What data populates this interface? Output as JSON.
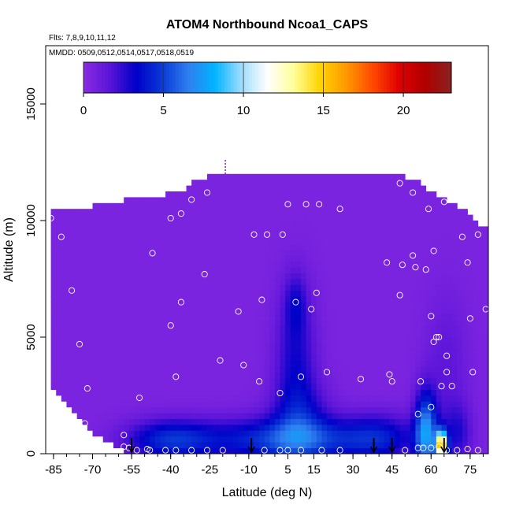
{
  "chart_data": {
    "type": "heatmap",
    "title": "ATOM4 Northbound Ncoa1_CAPS",
    "subtitle_flights": "Flts: 7,8,9,10,11,12",
    "subtitle_dates": "MMDD: 0509,0512,0514,0517,0518,0519",
    "xlabel": "Latitude (deg N)",
    "ylabel": "Altitude (m)",
    "xlim": [
      -88,
      82
    ],
    "ylim": [
      0,
      17500
    ],
    "x_ticks": [
      -85,
      -70,
      -55,
      -40,
      -25,
      -10,
      5,
      15,
      30,
      45,
      60,
      75
    ],
    "x_tick_labels": [
      "-85",
      "-70",
      "-55",
      "-40",
      "-25",
      "-10",
      "5",
      "15",
      "30",
      "45",
      "60",
      "75"
    ],
    "y_ticks": [
      0,
      5000,
      10000,
      15000
    ],
    "y_tick_labels": [
      "0",
      "5000",
      "10000",
      "15000"
    ],
    "colorbar": {
      "min": 0,
      "max": 23,
      "ticks": [
        0,
        5,
        10,
        15,
        20
      ],
      "tick_labels": [
        "0",
        "5",
        "10",
        "15",
        "20"
      ],
      "colors": [
        "#8a2be2",
        "#5a14d8",
        "#0000c8",
        "#0a3ad6",
        "#2f7ff0",
        "#00b4ff",
        "#9fdcff",
        "#ffffff",
        "#ffff9a",
        "#ffd400",
        "#ff9800",
        "#ff4a00",
        "#e00000",
        "#b00000",
        "#8b2222"
      ]
    },
    "background_value": 0.5,
    "profile_top": [
      [
        -86,
        10500
      ],
      [
        -82,
        10500
      ],
      [
        -78,
        10500
      ],
      [
        -74,
        10500
      ],
      [
        -70,
        10500
      ],
      [
        -66,
        10600
      ],
      [
        -62,
        10600
      ],
      [
        -58,
        10800
      ],
      [
        -54,
        10800
      ],
      [
        -50,
        10900
      ],
      [
        -46,
        10900
      ],
      [
        -42,
        11000
      ],
      [
        -38,
        11100
      ],
      [
        -34,
        11300
      ],
      [
        -30,
        11600
      ],
      [
        -26,
        11800
      ],
      [
        -22,
        11900
      ],
      [
        -18,
        11900
      ],
      [
        -14,
        11900
      ],
      [
        -10,
        11900
      ],
      [
        -6,
        11900
      ],
      [
        -2,
        11900
      ],
      [
        2,
        11900
      ],
      [
        6,
        11900
      ],
      [
        10,
        11900
      ],
      [
        14,
        11900
      ],
      [
        18,
        11900
      ],
      [
        22,
        11900
      ],
      [
        26,
        11900
      ],
      [
        30,
        11900
      ],
      [
        34,
        11900
      ],
      [
        38,
        11900
      ],
      [
        42,
        11900
      ],
      [
        46,
        11900
      ],
      [
        50,
        11800
      ],
      [
        54,
        11600
      ],
      [
        58,
        11300
      ],
      [
        62,
        11000
      ],
      [
        66,
        10800
      ],
      [
        70,
        10500
      ],
      [
        74,
        10200
      ],
      [
        78,
        9700
      ],
      [
        81,
        9600
      ]
    ],
    "profile_bottom": [
      [
        -86,
        3000
      ],
      [
        -82,
        2400
      ],
      [
        -78,
        1900
      ],
      [
        -74,
        1400
      ],
      [
        -70,
        1000
      ],
      [
        -66,
        700
      ],
      [
        -62,
        500
      ],
      [
        -58,
        300
      ]
    ],
    "enhancements": [
      {
        "x": 8,
        "y": 4000,
        "sx": 5.5,
        "sy": 2200,
        "amp": 2.4
      },
      {
        "x": 8,
        "y": 6500,
        "sx": 3.0,
        "sy": 900,
        "amp": 1.6
      },
      {
        "x": 10,
        "y": 1500,
        "sx": 8.0,
        "sy": 1100,
        "amp": 2.2
      },
      {
        "x": -40,
        "y": 600,
        "sx": 12.0,
        "sy": 600,
        "amp": 3.8
      },
      {
        "x": 5,
        "y": 600,
        "sx": 22.0,
        "sy": 650,
        "amp": 4.5
      },
      {
        "x": 40,
        "y": 700,
        "sx": 10.0,
        "sy": 700,
        "amp": 2.8
      },
      {
        "x": 58,
        "y": 900,
        "sx": 3.0,
        "sy": 1200,
        "amp": 6.5
      },
      {
        "x": 64,
        "y": 400,
        "sx": 1.5,
        "sy": 400,
        "amp": 15.0
      },
      {
        "x": 66,
        "y": 3800,
        "sx": 6.0,
        "sy": 2200,
        "amp": 1.0
      },
      {
        "x": 70,
        "y": 900,
        "sx": 4.0,
        "sy": 900,
        "amp": 2.0
      }
    ],
    "observations": [
      [
        -86,
        10100
      ],
      [
        -82,
        9300
      ],
      [
        -78,
        7000
      ],
      [
        -75,
        4700
      ],
      [
        -72,
        2800
      ],
      [
        -73,
        1300
      ],
      [
        -58,
        800
      ],
      [
        -52,
        2400
      ],
      [
        -47,
        8600
      ],
      [
        -40,
        10100
      ],
      [
        -36,
        10300
      ],
      [
        -32,
        10900
      ],
      [
        -26,
        11200
      ],
      [
        -36,
        6500
      ],
      [
        -40,
        5500
      ],
      [
        -38,
        3300
      ],
      [
        -27,
        7700
      ],
      [
        -21,
        4000
      ],
      [
        -14,
        6100
      ],
      [
        -12,
        3800
      ],
      [
        -8,
        9400
      ],
      [
        -6,
        3100
      ],
      [
        -5,
        6600
      ],
      [
        -3,
        9400
      ],
      [
        2,
        2600
      ],
      [
        3,
        9400
      ],
      [
        5,
        10700
      ],
      [
        8,
        6500
      ],
      [
        10,
        3300
      ],
      [
        12,
        10700
      ],
      [
        14,
        6200
      ],
      [
        16,
        6900
      ],
      [
        17,
        10700
      ],
      [
        20,
        3500
      ],
      [
        25,
        10500
      ],
      [
        33,
        3200
      ],
      [
        43,
        8200
      ],
      [
        44,
        3400
      ],
      [
        45,
        3100
      ],
      [
        48,
        11600
      ],
      [
        48,
        6800
      ],
      [
        49,
        8100
      ],
      [
        53,
        11200
      ],
      [
        53,
        8500
      ],
      [
        54,
        8000
      ],
      [
        56,
        3100
      ],
      [
        58,
        7900
      ],
      [
        59,
        10500
      ],
      [
        60,
        5900
      ],
      [
        61,
        8700
      ],
      [
        61,
        4800
      ],
      [
        62,
        5000
      ],
      [
        63,
        5000
      ],
      [
        64,
        2900
      ],
      [
        65,
        10800
      ],
      [
        66,
        4200
      ],
      [
        66,
        3500
      ],
      [
        68,
        2900
      ],
      [
        70,
        10900
      ],
      [
        72,
        9300
      ],
      [
        74,
        8200
      ],
      [
        75,
        5800
      ],
      [
        76,
        3500
      ],
      [
        78,
        9400
      ],
      [
        81,
        6200
      ],
      [
        60,
        2000
      ],
      [
        55,
        1700
      ],
      [
        -56,
        250
      ],
      [
        -53,
        150
      ],
      [
        -48,
        150
      ],
      [
        -42,
        150
      ],
      [
        -38,
        150
      ],
      [
        -32,
        150
      ],
      [
        -26,
        150
      ],
      [
        -20,
        150
      ],
      [
        -4,
        150
      ],
      [
        2,
        150
      ],
      [
        10,
        150
      ],
      [
        18,
        150
      ],
      [
        25,
        150
      ],
      [
        50,
        150
      ],
      [
        55,
        250
      ],
      [
        57,
        250
      ],
      [
        60,
        250
      ],
      [
        63,
        300
      ],
      [
        66,
        150
      ],
      [
        70,
        150
      ],
      [
        74,
        200
      ],
      [
        78,
        150
      ],
      [
        -49,
        200
      ],
      [
        -58,
        300
      ],
      [
        5,
        150
      ]
    ],
    "surface_arrows": [
      -55,
      -9,
      38,
      45,
      65
    ],
    "top_marker_x": -19
  }
}
